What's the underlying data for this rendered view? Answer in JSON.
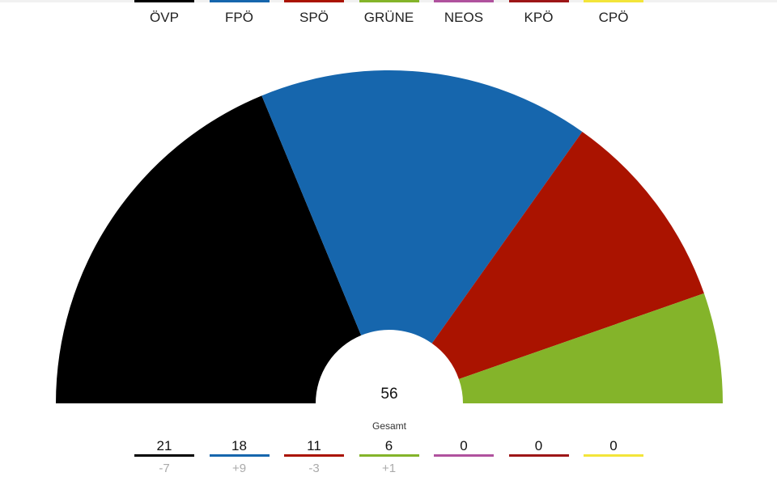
{
  "chart_data": {
    "type": "pie",
    "subtype": "half-donut (parliament seats)",
    "categories": [
      "ÖVP",
      "FPÖ",
      "SPÖ",
      "GRÜNE",
      "NEOS",
      "KPÖ",
      "CPÖ"
    ],
    "values": [
      21,
      18,
      11,
      6,
      0,
      0,
      0
    ],
    "changes": [
      "-7",
      "+9",
      "-3",
      "+1",
      "",
      "",
      ""
    ],
    "colors": [
      "#000000",
      "#1666ad",
      "#aa1300",
      "#84b42a",
      "#b0529e",
      "#9d1617",
      "#f3e53a"
    ],
    "total": 56,
    "total_label": "Gesamt",
    "legend_position": "top"
  },
  "legend": [
    {
      "label": "ÖVP",
      "color": "#000000"
    },
    {
      "label": "FPÖ",
      "color": "#1666ad"
    },
    {
      "label": "SPÖ",
      "color": "#aa1300"
    },
    {
      "label": "GRÜNE",
      "color": "#84b42a"
    },
    {
      "label": "NEOS",
      "color": "#b0529e"
    },
    {
      "label": "KPÖ",
      "color": "#9d1617"
    },
    {
      "label": "CPÖ",
      "color": "#f3e53a"
    }
  ],
  "center": {
    "total": "56",
    "label": "Gesamt"
  },
  "results": [
    {
      "seats": "21",
      "change": "-7",
      "color": "#000000"
    },
    {
      "seats": "18",
      "change": "+9",
      "color": "#1666ad"
    },
    {
      "seats": "11",
      "change": "-3",
      "color": "#aa1300"
    },
    {
      "seats": "6",
      "change": "+1",
      "color": "#84b42a"
    },
    {
      "seats": "0",
      "change": "",
      "color": "#b0529e"
    },
    {
      "seats": "0",
      "change": "",
      "color": "#9d1617"
    },
    {
      "seats": "0",
      "change": "",
      "color": "#f3e53a"
    }
  ]
}
